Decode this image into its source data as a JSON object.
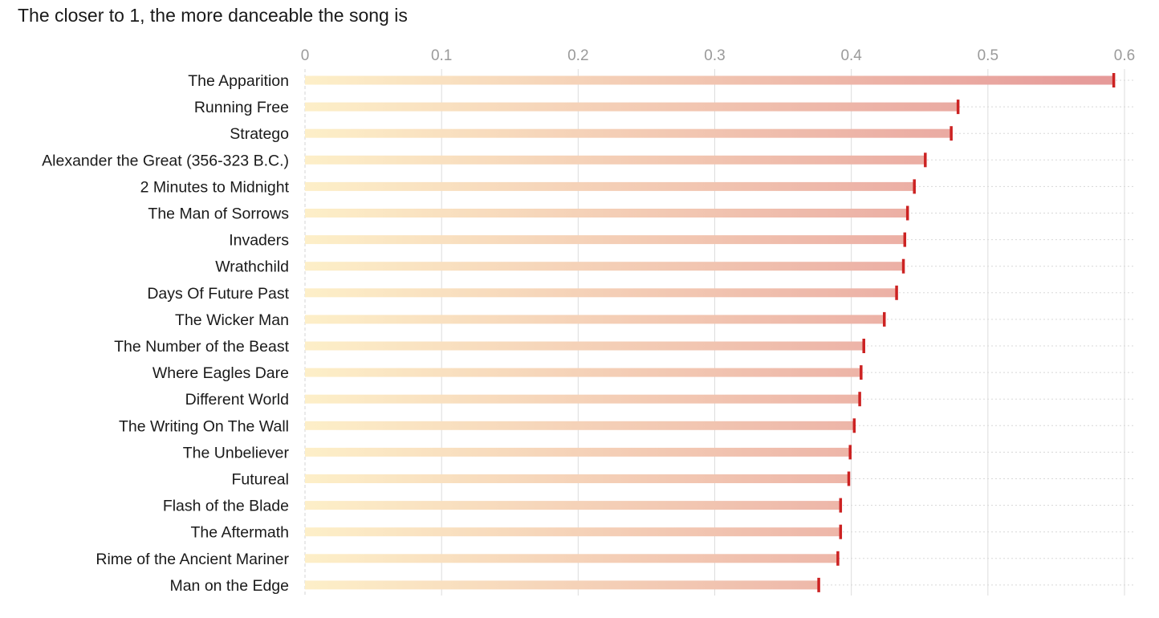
{
  "chart_data": {
    "type": "bar",
    "orientation": "horizontal",
    "title": "The closer to 1, the more danceable the song is",
    "xlabel": "",
    "ylabel": "",
    "xlim": [
      0,
      0.6
    ],
    "x_ticks": [
      "0",
      "0.1",
      "0.2",
      "0.3",
      "0.4",
      "0.5",
      "0.6"
    ],
    "x_tick_values": [
      0,
      0.1,
      0.2,
      0.3,
      0.4,
      0.5,
      0.6
    ],
    "grid": true,
    "colors": {
      "bar_start": "#fdefc8",
      "bar_end": "#e59898",
      "end_marker": "#cc2222",
      "grid": "#dcdcdc",
      "row_guide": "#d8d8d8",
      "tick_text": "#9a9a9a",
      "label_text": "#1a1a1a"
    },
    "categories": [
      "The Apparition",
      "Running Free",
      "Stratego",
      "Alexander the Great (356-323 B.C.)",
      "2 Minutes to Midnight",
      "The Man of Sorrows",
      "Invaders",
      "Wrathchild",
      "Days Of Future Past",
      "The Wicker Man",
      "The Number of the Beast",
      "Where Eagles Dare",
      "Different World",
      "The Writing On The Wall",
      "The Unbeliever",
      "Futureal",
      "Flash of the Blade",
      "The Aftermath",
      "Rime of the Ancient Mariner",
      "Man on the Edge"
    ],
    "values": [
      0.592,
      0.478,
      0.473,
      0.454,
      0.446,
      0.441,
      0.439,
      0.438,
      0.433,
      0.424,
      0.409,
      0.407,
      0.406,
      0.402,
      0.399,
      0.398,
      0.392,
      0.392,
      0.39,
      0.376
    ]
  }
}
